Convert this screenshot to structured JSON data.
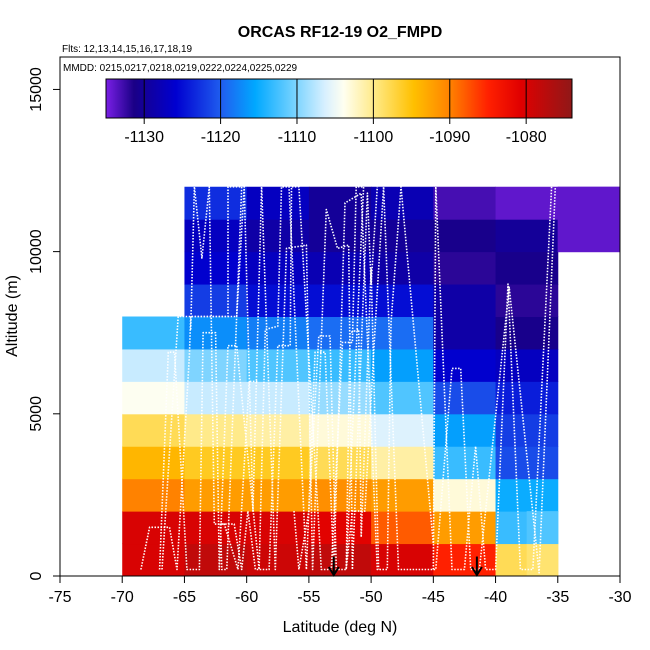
{
  "chart_data": {
    "type": "heatmap",
    "title": "ORCAS RF12-19 O2_FMPD",
    "flights_note": "Flts: 12,13,14,15,16,17,18,19",
    "dates_note": "MMDD: 0215,0217,0218,0219,0222,0224,0225,0229",
    "xlabel": "Latitude (deg N)",
    "ylabel": "Altitude (m)",
    "xlim": [
      -75,
      -30
    ],
    "ylim": [
      0,
      16000
    ],
    "x_ticks": [
      -75,
      -70,
      -65,
      -60,
      -55,
      -50,
      -45,
      -40,
      -35,
      -30
    ],
    "x_tick_labels": [
      "-75",
      "-70",
      "-65",
      "-60",
      "-55",
      "-50",
      "-45",
      "-40",
      "-35",
      "-30"
    ],
    "y_ticks": [
      0,
      5000,
      10000,
      15000
    ],
    "y_tick_labels": [
      "0",
      "5000",
      "10000",
      "15000"
    ],
    "colorbar": {
      "range": [
        -1135,
        -1074
      ],
      "ticks": [
        -1130,
        -1120,
        -1110,
        -1100,
        -1090,
        -1080
      ],
      "tick_labels": [
        "-1130",
        "-1120",
        "-1110",
        "-1100",
        "-1090",
        "-1080"
      ],
      "major_lines": [
        -1130,
        -1120,
        -1110,
        -1100,
        -1090,
        -1080
      ]
    },
    "grid": {
      "lat_edges": [
        -70,
        -65,
        -60,
        -55,
        -50,
        -45,
        -40,
        -35
      ],
      "alt_edges": [
        0,
        1000,
        2000,
        3000,
        4000,
        5000,
        6000,
        7000,
        8000,
        9000,
        10000,
        11000,
        12000
      ],
      "cells": [
        [
          -1080,
          -1078,
          -1079,
          -1078,
          -1080,
          -1085,
          -1098,
          null
        ],
        [
          -1080,
          -1080,
          -1080,
          -1081,
          -1088,
          -1092,
          -1113,
          null
        ],
        [
          -1090,
          -1092,
          -1092,
          -1091,
          -1092,
          -1103,
          -1115,
          null
        ],
        [
          -1094,
          -1096,
          -1096,
          -1098,
          -1101,
          -1113,
          -1121,
          null
        ],
        [
          -1098,
          -1100,
          -1101,
          -1103,
          -1106,
          -1116,
          -1122,
          null
        ],
        [
          -1104,
          -1107,
          -1107,
          -1109,
          -1112,
          -1121,
          -1124,
          null
        ],
        [
          -1107,
          -1110,
          -1112,
          -1113,
          -1116,
          -1126,
          -1127,
          null
        ],
        [
          -1113,
          -1117,
          -1118,
          -1119,
          -1119,
          -1129,
          -1131,
          null
        ],
        [
          null,
          -1122,
          -1125,
          -1125,
          -1125,
          -1129,
          -1132,
          null
        ],
        [
          null,
          -1126,
          -1127,
          -1128,
          -1129,
          -1132,
          -1131,
          null
        ],
        [
          null,
          -1127,
          -1129,
          -1130,
          -1130,
          -1131,
          -1130,
          -1134
        ],
        [
          null,
          -1123,
          -1127,
          -1130,
          -1128,
          -1133,
          -1134,
          -1134
        ]
      ],
      "extra_cells": [
        {
          "lat0": -37.5,
          "lat1": -35,
          "alt0": 0,
          "alt1": 1000,
          "value": -1099
        },
        {
          "lat0": -35,
          "lat1": -30,
          "alt0": 10000,
          "alt1": 12000,
          "value": -1134
        },
        {
          "lat0": -37.5,
          "lat1": -35,
          "alt0": 1000,
          "alt1": 2000,
          "value": -1112
        }
      ]
    },
    "flight_tracks": [
      [
        [
          -68.5,
          200
        ],
        [
          -67.8,
          1500
        ],
        [
          -66.2,
          1500
        ],
        [
          -65.6,
          200
        ],
        [
          -64.6,
          6800
        ],
        [
          -64.5,
          8000
        ],
        [
          -61.5,
          8000
        ],
        [
          -61.5,
          12000
        ],
        [
          -60.4,
          12000
        ],
        [
          -61.6,
          200
        ],
        [
          -62,
          200
        ],
        [
          -62.1,
          1600
        ],
        [
          -61,
          1600
        ],
        [
          -60.4,
          200
        ],
        [
          -59.9,
          2000
        ],
        [
          -59.3,
          200
        ],
        [
          -58.6,
          200
        ],
        [
          -58.2,
          200
        ],
        [
          -57.5,
          7100
        ],
        [
          -56.5,
          7100
        ],
        [
          -56.4,
          12000
        ],
        [
          -55.8,
          12000
        ],
        [
          -54,
          200
        ],
        [
          -53.2,
          200
        ],
        [
          -52.3,
          7200
        ],
        [
          -51.5,
          7200
        ],
        [
          -51.2,
          12000
        ],
        [
          -50.6,
          12000
        ],
        [
          -52,
          200
        ],
        [
          -51.5,
          2000
        ],
        [
          -50.5,
          2000
        ],
        [
          -49.7,
          7500
        ],
        [
          -49,
          12000
        ],
        [
          -47.8,
          200
        ],
        [
          -44.8,
          200
        ],
        [
          -43.5,
          6400
        ],
        [
          -42.8,
          6400
        ],
        [
          -42,
          200
        ],
        [
          -41.3,
          200
        ],
        [
          -38.9,
          8900
        ],
        [
          -36.5,
          100
        ],
        [
          -35.2,
          12000
        ]
      ],
      [
        [
          -67,
          200
        ],
        [
          -66.3,
          6900
        ],
        [
          -65.8,
          6900
        ],
        [
          -64.8,
          200
        ],
        [
          -63.8,
          200
        ],
        [
          -63.5,
          7500
        ],
        [
          -62.5,
          7500
        ],
        [
          -62.2,
          200
        ],
        [
          -61.5,
          7100
        ],
        [
          -60.8,
          7100
        ],
        [
          -59,
          200
        ],
        [
          -58.5,
          7600
        ],
        [
          -57.5,
          7700
        ],
        [
          -57.2,
          12000
        ],
        [
          -56.6,
          12000
        ],
        [
          -55.2,
          200
        ],
        [
          -54.5,
          6900
        ],
        [
          -53.7,
          6900
        ],
        [
          -53,
          200
        ],
        [
          -52.1,
          11500
        ],
        [
          -50.8,
          11800
        ],
        [
          -49.5,
          200
        ],
        [
          -48.7,
          200
        ],
        [
          -48.4,
          7800
        ],
        [
          -47.6,
          12000
        ],
        [
          -45,
          1000
        ]
      ],
      [
        [
          -66.8,
          200
        ],
        [
          -65.5,
          8000
        ],
        [
          -60.8,
          8000
        ],
        [
          -60.2,
          12000
        ],
        [
          -59.5,
          2000
        ],
        [
          -58.8,
          12000
        ],
        [
          -57.7,
          200
        ],
        [
          -56.8,
          10100
        ],
        [
          -55.2,
          10200
        ],
        [
          -54.7,
          200
        ],
        [
          -53.6,
          11300
        ],
        [
          -52.7,
          10100
        ],
        [
          -51.8,
          10200
        ],
        [
          -51.5,
          200
        ],
        [
          -50.3,
          11800
        ],
        [
          -50,
          9000
        ],
        [
          -49.5,
          12000
        ]
      ],
      [
        [
          -64.5,
          7600
        ],
        [
          -64.2,
          12000
        ],
        [
          -63.6,
          9800
        ],
        [
          -63,
          12000
        ],
        [
          -62.6,
          1600
        ],
        [
          -61.8,
          1600
        ],
        [
          -60.7,
          200
        ],
        [
          -59.8,
          6000
        ],
        [
          -59.1,
          6000
        ]
      ],
      [
        [
          -56.2,
          2000
        ],
        [
          -55.8,
          200
        ],
        [
          -55,
          2000
        ],
        [
          -54.2,
          7400
        ],
        [
          -53.3,
          7400
        ],
        [
          -52.8,
          200
        ],
        [
          -52,
          200
        ],
        [
          -51.7,
          7500
        ],
        [
          -51,
          7600
        ],
        [
          -50.8,
          1200
        ],
        [
          -50,
          9500
        ],
        [
          -49.4,
          200
        ]
      ],
      [
        [
          -45,
          200
        ],
        [
          -44.8,
          12000
        ],
        [
          -43.5,
          200
        ],
        [
          -42.5,
          200
        ],
        [
          -41.6,
          4000
        ],
        [
          -40.8,
          200
        ],
        [
          -40,
          200
        ],
        [
          -39,
          9000
        ],
        [
          -38,
          200
        ],
        [
          -37,
          200
        ],
        [
          -35.5,
          12000
        ]
      ]
    ],
    "arrows": [
      {
        "lat": -53,
        "alt_top": 600
      },
      {
        "lat": -41.5,
        "alt_top": 600
      }
    ]
  }
}
